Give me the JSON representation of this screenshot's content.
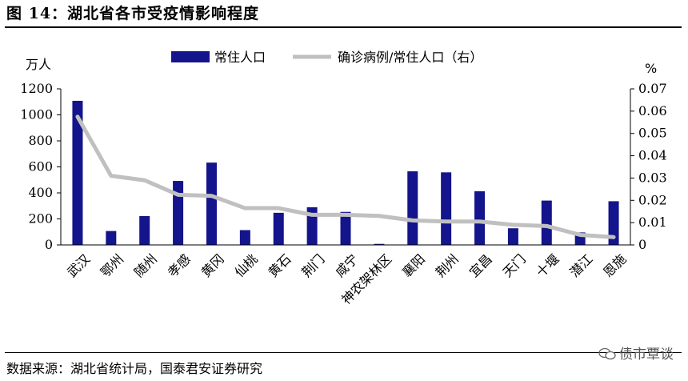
{
  "title": "图 14：湖北省各市受疫情影响程度",
  "source": "数据来源：湖北省统计局，国泰君安证券研究",
  "watermark": "债市覃谈",
  "colors": {
    "bar": "#14148c",
    "line": "#c0c0c0"
  },
  "chart_data": {
    "type": "bar+line",
    "categories": [
      "武汉",
      "鄂州",
      "随州",
      "孝感",
      "黄冈",
      "仙桃",
      "黄石",
      "荆门",
      "咸宁",
      "神农架林区",
      "襄阳",
      "荆州",
      "宜昌",
      "天门",
      "十堰",
      "潜江",
      "恩施"
    ],
    "left_axis": {
      "unit": "万人",
      "min": 0,
      "max": 1200,
      "ticks": [
        0,
        200,
        400,
        600,
        800,
        1000,
        1200
      ]
    },
    "right_axis": {
      "unit": "%",
      "min": 0,
      "max": 0.07,
      "ticks": [
        "0",
        "0.01",
        "0.02",
        "0.03",
        "0.04",
        "0.05",
        "0.06",
        "0.07"
      ]
    },
    "series": [
      {
        "name": "常住人口",
        "type": "bar",
        "axis": "left",
        "values": [
          1108,
          107,
          222,
          492,
          633,
          114,
          247,
          290,
          254,
          8,
          566,
          558,
          413,
          128,
          341,
          96,
          336
        ]
      },
      {
        "name": "确诊病例/常住人口（右）",
        "type": "line",
        "axis": "right",
        "values": [
          0.0575,
          0.031,
          0.029,
          0.0225,
          0.022,
          0.0165,
          0.0165,
          0.0135,
          0.0135,
          0.013,
          0.011,
          0.0105,
          0.0105,
          0.009,
          0.0085,
          0.0045,
          0.0035
        ]
      }
    ],
    "legend": "top",
    "grid": false
  }
}
